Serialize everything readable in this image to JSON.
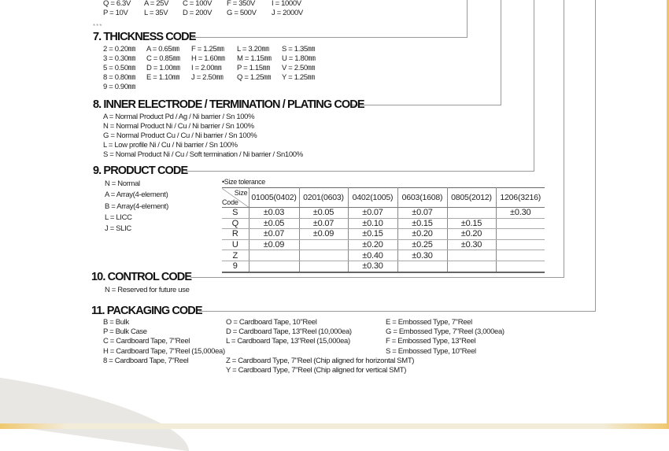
{
  "voltage_rows": [
    [
      "Q = 6.3V",
      "A = 25V",
      "C = 100V",
      "F = 350V",
      "I = 1000V"
    ],
    [
      "P = 10V",
      "L = 35V",
      "D = 200V",
      "G = 500V",
      "J = 2000V"
    ]
  ],
  "stars": "***",
  "thickness": {
    "title": "7. THICKNESS CODE",
    "rows": [
      [
        "2 = 0.20㎜",
        "A = 0.65㎜",
        "F = 1.25㎜",
        "L = 3.20㎜",
        "S = 1.35㎜"
      ],
      [
        "3 = 0.30㎜",
        "C = 0.85㎜",
        "H = 1.60㎜",
        "M = 1.15㎜",
        "U = 1.80㎜"
      ],
      [
        "5 = 0.50㎜",
        "D = 1.00㎜",
        "I = 2.00㎜",
        "P = 1.15㎜",
        "V = 2.50㎜"
      ],
      [
        "8 = 0.80㎜",
        "E = 1.10㎜",
        "J = 2.50㎜",
        "Q = 1.25㎜",
        "Y = 1.25㎜"
      ],
      [
        "9 = 0.90㎜",
        "",
        "",
        "",
        ""
      ]
    ]
  },
  "electrode": {
    "title": "8. INNER ELECTRODE / TERMINATION / PLATING CODE",
    "items": [
      "A = Normal Product Pd / Ag / Ni barrier / Sn 100%",
      "N = Normal Product Ni / Cu / Ni barrier / Sn 100%",
      "G = Normal Product Cu / Cu / Ni barrier / Sn 100%",
      "L = Low profile Ni / Cu / Ni barrier / Sn 100%",
      "S = Nomal Product Ni / Cu / Soft termination / Ni barrier / Sn100%"
    ]
  },
  "product": {
    "title": "9. PRODUCT CODE",
    "items": [
      "N = Normal",
      "A = Array(4-element)",
      "B = Array(4-element)",
      "L = LICC",
      "J = SLIC"
    ]
  },
  "tolerance_table": {
    "caption": "•Size tolerance",
    "corner_size": "Size",
    "corner_code": "Code",
    "columns": [
      "01005(0402)",
      "0201(0603)",
      "0402(1005)",
      "0603(1608)",
      "0805(2012)",
      "1206(3216)"
    ],
    "rows": [
      [
        "S",
        "±0.03",
        "±0.05",
        "±0.07",
        "±0.07",
        "",
        "±0.30"
      ],
      [
        "Q",
        "±0.05",
        "±0.07",
        "±0.10",
        "±0.15",
        "±0.15",
        ""
      ],
      [
        "R",
        "±0.07",
        "±0.09",
        "±0.15",
        "±0.20",
        "±0.20",
        ""
      ],
      [
        "U",
        "±0.09",
        "",
        "±0.20",
        "±0.25",
        "±0.30",
        ""
      ],
      [
        "Z",
        "",
        "",
        "±0.40",
        "±0.30",
        "",
        ""
      ],
      [
        "9",
        "",
        "",
        "±0.30",
        "",
        "",
        ""
      ]
    ]
  },
  "control": {
    "title": "10. CONTROL CODE",
    "items": [
      "N = Reserved for future use"
    ]
  },
  "packaging": {
    "title": "11. PACKAGING CODE",
    "col1": [
      "B = Bulk",
      "P = Bulk Case",
      "C = Cardboard Tape, 7\"Reel",
      "H = Cardboard Tape, 7\"Reel (15,000ea)",
      "8 = Cardboard Tape, 7\"Reel"
    ],
    "col2": [
      "O = Cardboard Tape, 10\"Reel",
      "D = Cardboard Tape, 13\"Reel (10,000ea)",
      "L = Cardboard Tape, 13\"Reel (15,000ea)",
      "",
      "Z = Cardboard Type, 7\"Reel (Chip aligned for horizontal SMT)",
      "Y = Cardboard Type, 7\"Reel (Chip aligned for vertical SMT)"
    ],
    "col3": [
      "E = Embossed Type, 7\"Reel",
      "G = Embossed Type, 7\"Reel (3,000ea)",
      "F = Embossed Type, 13\"Reel",
      "S = Embossed Type, 10\"Reel"
    ]
  },
  "colors": {
    "line": "#999999",
    "accent_gold": "#f0c46a"
  }
}
